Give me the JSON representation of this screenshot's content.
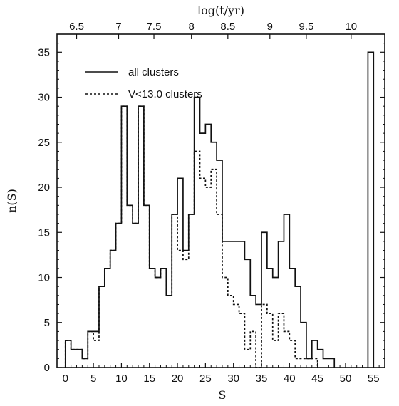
{
  "chart_data": {
    "type": "line",
    "step": true,
    "xlabel": "S",
    "ylabel": "n(S)",
    "top_axis_label": "log(t/yr)",
    "xlim": [
      -1.5,
      57
    ],
    "ylim": [
      0,
      37
    ],
    "xticks": [
      0,
      5,
      10,
      15,
      20,
      25,
      30,
      35,
      40,
      45,
      50,
      55
    ],
    "xtick_labels": [
      "0",
      "5",
      "10",
      "15",
      "20",
      "25",
      "30",
      "35",
      "40",
      "45",
      "50",
      "55"
    ],
    "yticks": [
      0,
      5,
      10,
      15,
      20,
      25,
      30,
      35
    ],
    "ytick_labels": [
      "0",
      "5",
      "10",
      "15",
      "20",
      "25",
      "30",
      "35"
    ],
    "top_ticks": [
      {
        "label": "6.5",
        "s": 2.0
      },
      {
        "label": "7",
        "s": 9.5
      },
      {
        "label": "7.5",
        "s": 15.8
      },
      {
        "label": "8",
        "s": 22.5
      },
      {
        "label": "8.5",
        "s": 29.0
      },
      {
        "label": "9",
        "s": 36.5
      },
      {
        "label": "9.5",
        "s": 43.0
      },
      {
        "label": "10",
        "s": 51.0
      }
    ],
    "grid": false,
    "legend_position": "top-left",
    "bin_width": 1,
    "series": [
      {
        "name": "all clusters",
        "line_style": "solid",
        "bins": [
          [
            0,
            3
          ],
          [
            1,
            2
          ],
          [
            2,
            2
          ],
          [
            3,
            1
          ],
          [
            4,
            4
          ],
          [
            5,
            4
          ],
          [
            6,
            9
          ],
          [
            7,
            11
          ],
          [
            8,
            13
          ],
          [
            9,
            16
          ],
          [
            10,
            29
          ],
          [
            11,
            18
          ],
          [
            12,
            16
          ],
          [
            13,
            29
          ],
          [
            14,
            18
          ],
          [
            15,
            11
          ],
          [
            16,
            10
          ],
          [
            17,
            11
          ],
          [
            18,
            8
          ],
          [
            19,
            17
          ],
          [
            20,
            21
          ],
          [
            21,
            13
          ],
          [
            22,
            17
          ],
          [
            23,
            30
          ],
          [
            24,
            26
          ],
          [
            25,
            27
          ],
          [
            26,
            25
          ],
          [
            27,
            23
          ],
          [
            28,
            14
          ],
          [
            29,
            14
          ],
          [
            30,
            14
          ],
          [
            31,
            14
          ],
          [
            32,
            12
          ],
          [
            33,
            8
          ],
          [
            34,
            7
          ],
          [
            35,
            15
          ],
          [
            36,
            11
          ],
          [
            37,
            10
          ],
          [
            38,
            14
          ],
          [
            39,
            17
          ],
          [
            40,
            11
          ],
          [
            41,
            9
          ],
          [
            42,
            5
          ],
          [
            43,
            1
          ],
          [
            44,
            3
          ],
          [
            45,
            2
          ],
          [
            46,
            1
          ],
          [
            47,
            1
          ],
          [
            54,
            35
          ]
        ]
      },
      {
        "name": "V<13.0 clusters",
        "line_style": "dotted",
        "bins": [
          [
            0,
            3
          ],
          [
            1,
            2
          ],
          [
            2,
            2
          ],
          [
            3,
            1
          ],
          [
            4,
            4
          ],
          [
            5,
            3
          ],
          [
            6,
            9
          ],
          [
            7,
            11
          ],
          [
            8,
            13
          ],
          [
            9,
            16
          ],
          [
            10,
            29
          ],
          [
            11,
            18
          ],
          [
            12,
            16
          ],
          [
            13,
            29
          ],
          [
            14,
            18
          ],
          [
            15,
            11
          ],
          [
            16,
            10
          ],
          [
            17,
            11
          ],
          [
            18,
            8
          ],
          [
            19,
            17
          ],
          [
            20,
            13
          ],
          [
            21,
            12
          ],
          [
            22,
            17
          ],
          [
            23,
            24
          ],
          [
            24,
            21
          ],
          [
            25,
            20
          ],
          [
            26,
            22
          ],
          [
            27,
            17
          ],
          [
            28,
            10
          ],
          [
            29,
            8
          ],
          [
            30,
            7
          ],
          [
            31,
            6
          ],
          [
            32,
            2
          ],
          [
            33,
            4
          ],
          [
            34,
            0
          ],
          [
            35,
            7
          ],
          [
            36,
            6
          ],
          [
            37,
            3
          ],
          [
            38,
            6
          ],
          [
            39,
            4
          ],
          [
            40,
            3
          ],
          [
            41,
            1
          ],
          [
            42,
            1
          ],
          [
            43,
            1
          ],
          [
            44,
            1
          ]
        ]
      }
    ]
  }
}
